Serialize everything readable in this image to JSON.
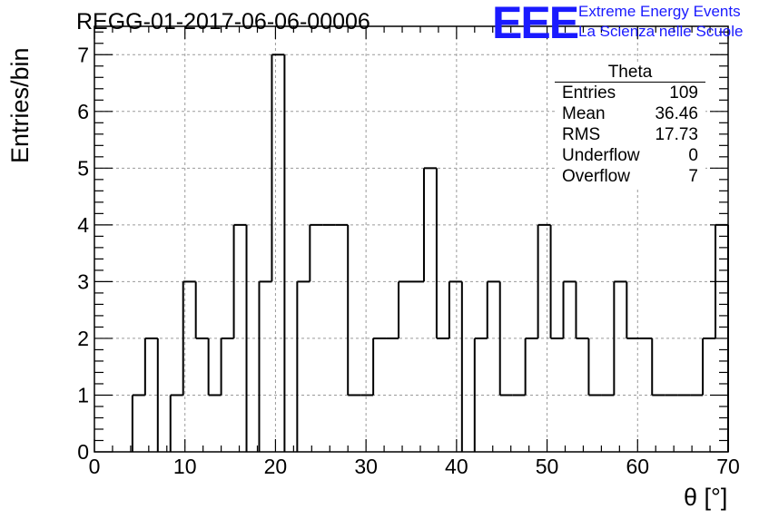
{
  "header": {
    "title": "REGG-01-2017-06-06-00006",
    "logo": "EEE",
    "org_line1": "Extreme Energy Events",
    "org_line2": "La Scienza nelle Scuole"
  },
  "stats_box": {
    "name": "Theta",
    "rows": [
      {
        "label": "Entries",
        "value": "109"
      },
      {
        "label": "Mean",
        "value": "36.46"
      },
      {
        "label": "RMS",
        "value": "17.73"
      },
      {
        "label": "Underflow",
        "value": "0"
      },
      {
        "label": "Overflow",
        "value": "7"
      }
    ]
  },
  "chart_data": {
    "type": "bar",
    "subtype": "histogram-step",
    "xlabel": "θ [°]",
    "ylabel": "Entries/bin",
    "xlim": [
      0,
      70
    ],
    "ylim": [
      0,
      7.5
    ],
    "grid": true,
    "bin_width": 1.4,
    "bin_start": 0,
    "xticks": [
      0,
      10,
      20,
      30,
      40,
      50,
      60,
      70
    ],
    "yticks": [
      0,
      1,
      2,
      3,
      4,
      5,
      6,
      7
    ],
    "values": [
      0,
      0,
      0,
      1,
      2,
      0,
      1,
      3,
      2,
      1,
      2,
      4,
      0,
      3,
      7,
      0,
      3,
      4,
      4,
      4,
      1,
      1,
      2,
      2,
      3,
      3,
      5,
      2,
      3,
      0,
      2,
      3,
      1,
      1,
      2,
      4,
      2,
      3,
      2,
      1,
      1,
      3,
      2,
      2,
      1,
      1,
      1,
      1,
      2,
      4
    ]
  },
  "colors": {
    "line": "#000000",
    "grid": "#9a9a9a",
    "logo": "#1a1aff"
  }
}
